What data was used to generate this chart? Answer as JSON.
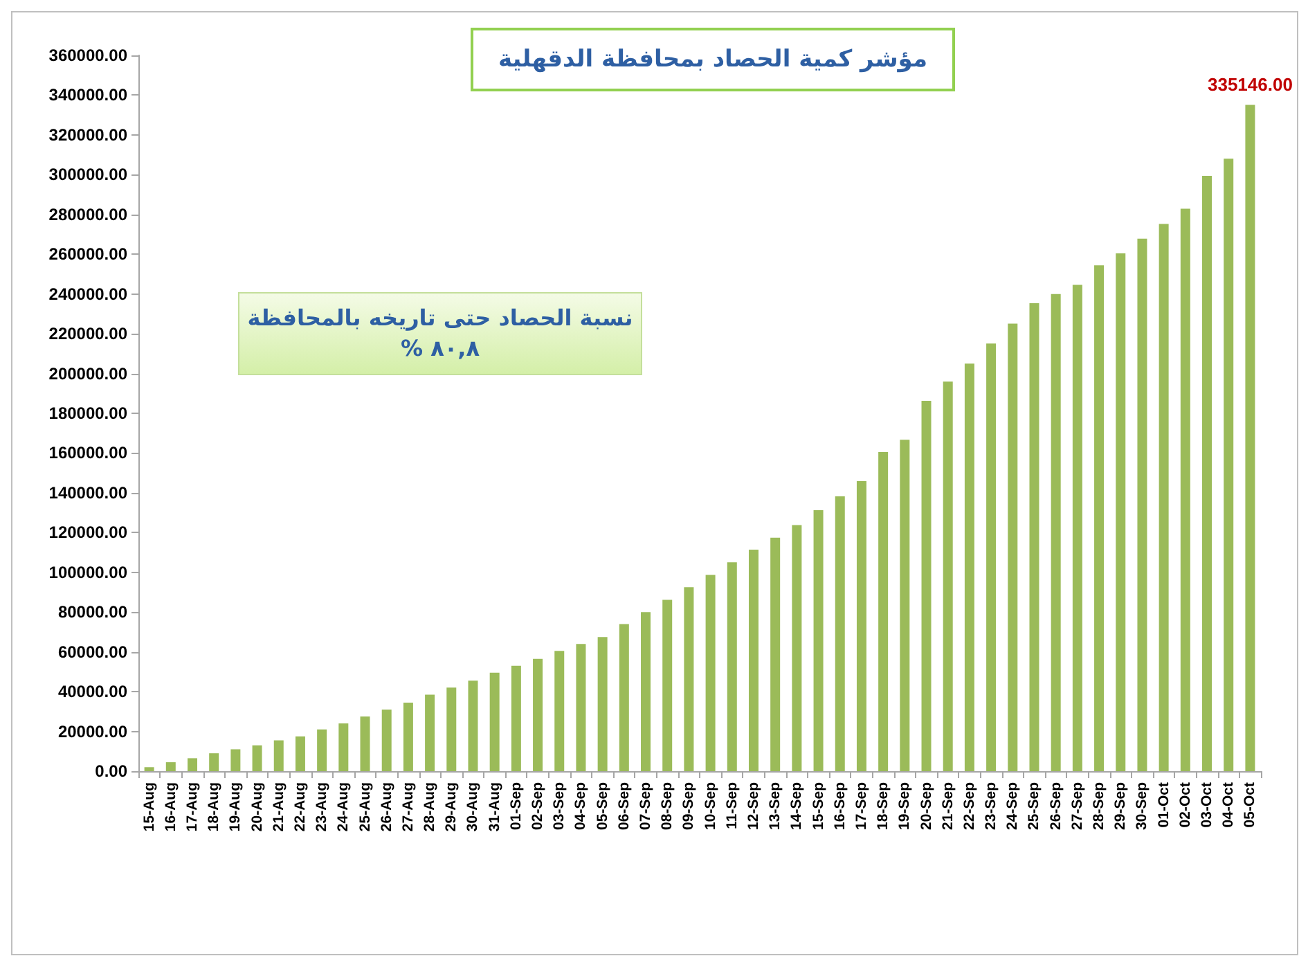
{
  "chart_data": {
    "type": "bar",
    "title": "مؤشر كمية الحصاد بمحافظة الدقهلية",
    "categories": [
      "15-Aug",
      "16-Aug",
      "17-Aug",
      "18-Aug",
      "19-Aug",
      "20-Aug",
      "21-Aug",
      "22-Aug",
      "23-Aug",
      "24-Aug",
      "25-Aug",
      "26-Aug",
      "27-Aug",
      "28-Aug",
      "29-Aug",
      "30-Aug",
      "31-Aug",
      "01-Sep",
      "02-Sep",
      "03-Sep",
      "04-Sep",
      "05-Sep",
      "06-Sep",
      "07-Sep",
      "08-Sep",
      "09-Sep",
      "10-Sep",
      "11-Sep",
      "12-Sep",
      "13-Sep",
      "14-Sep",
      "15-Sep",
      "16-Sep",
      "17-Sep",
      "18-Sep",
      "19-Sep",
      "20-Sep",
      "21-Sep",
      "22-Sep",
      "23-Sep",
      "24-Sep",
      "25-Sep",
      "26-Sep",
      "27-Sep",
      "28-Sep",
      "29-Sep",
      "30-Sep",
      "01-Oct",
      "02-Oct",
      "03-Oct",
      "04-Oct",
      "05-Oct"
    ],
    "values": [
      2000,
      4500,
      6500,
      9000,
      11000,
      13000,
      15500,
      17500,
      21000,
      24000,
      27500,
      31000,
      34500,
      38500,
      42000,
      45500,
      49500,
      53000,
      56500,
      60500,
      64000,
      67500,
      74000,
      80000,
      86200,
      92500,
      98700,
      105100,
      111400,
      117400,
      123800,
      131300,
      138200,
      145900,
      160500,
      166700,
      186300,
      195900,
      205000,
      215100,
      225100,
      235400,
      240000,
      244600,
      254400,
      260400,
      267800,
      275200,
      282900,
      299400,
      308000,
      335146
    ],
    "value_labels": [
      null,
      null,
      null,
      null,
      null,
      null,
      null,
      null,
      null,
      null,
      null,
      null,
      null,
      null,
      null,
      null,
      null,
      null,
      null,
      null,
      null,
      null,
      null,
      null,
      null,
      null,
      null,
      null,
      null,
      null,
      null,
      null,
      null,
      null,
      null,
      null,
      null,
      null,
      null,
      null,
      null,
      null,
      null,
      null,
      null,
      null,
      null,
      null,
      null,
      null,
      null,
      "335146.00"
    ],
    "color": "#9bbb59",
    "ylim": [
      0,
      360000
    ],
    "yticks": [
      {
        "value": 0,
        "label": "0.00"
      },
      {
        "value": 20000,
        "label": "20000.00"
      },
      {
        "value": 40000,
        "label": "40000.00"
      },
      {
        "value": 60000,
        "label": "60000.00"
      },
      {
        "value": 80000,
        "label": "80000.00"
      },
      {
        "value": 100000,
        "label": "100000.00"
      },
      {
        "value": 120000,
        "label": "120000.00"
      },
      {
        "value": 140000,
        "label": "140000.00"
      },
      {
        "value": 160000,
        "label": "160000.00"
      },
      {
        "value": 180000,
        "label": "180000.00"
      },
      {
        "value": 200000,
        "label": "200000.00"
      },
      {
        "value": 220000,
        "label": "220000.00"
      },
      {
        "value": 240000,
        "label": "240000.00"
      },
      {
        "value": 260000,
        "label": "260000.00"
      },
      {
        "value": 280000,
        "label": "280000.00"
      },
      {
        "value": 300000,
        "label": "300000.00"
      },
      {
        "value": 320000,
        "label": "320000.00"
      },
      {
        "value": 340000,
        "label": "340000.00"
      },
      {
        "value": 360000,
        "label": "360000.00"
      }
    ],
    "annotations": [
      "نسبة الحصاد حتى تاريخه بالمحافظة",
      "٨٠,٨ %"
    ],
    "grid": false
  }
}
